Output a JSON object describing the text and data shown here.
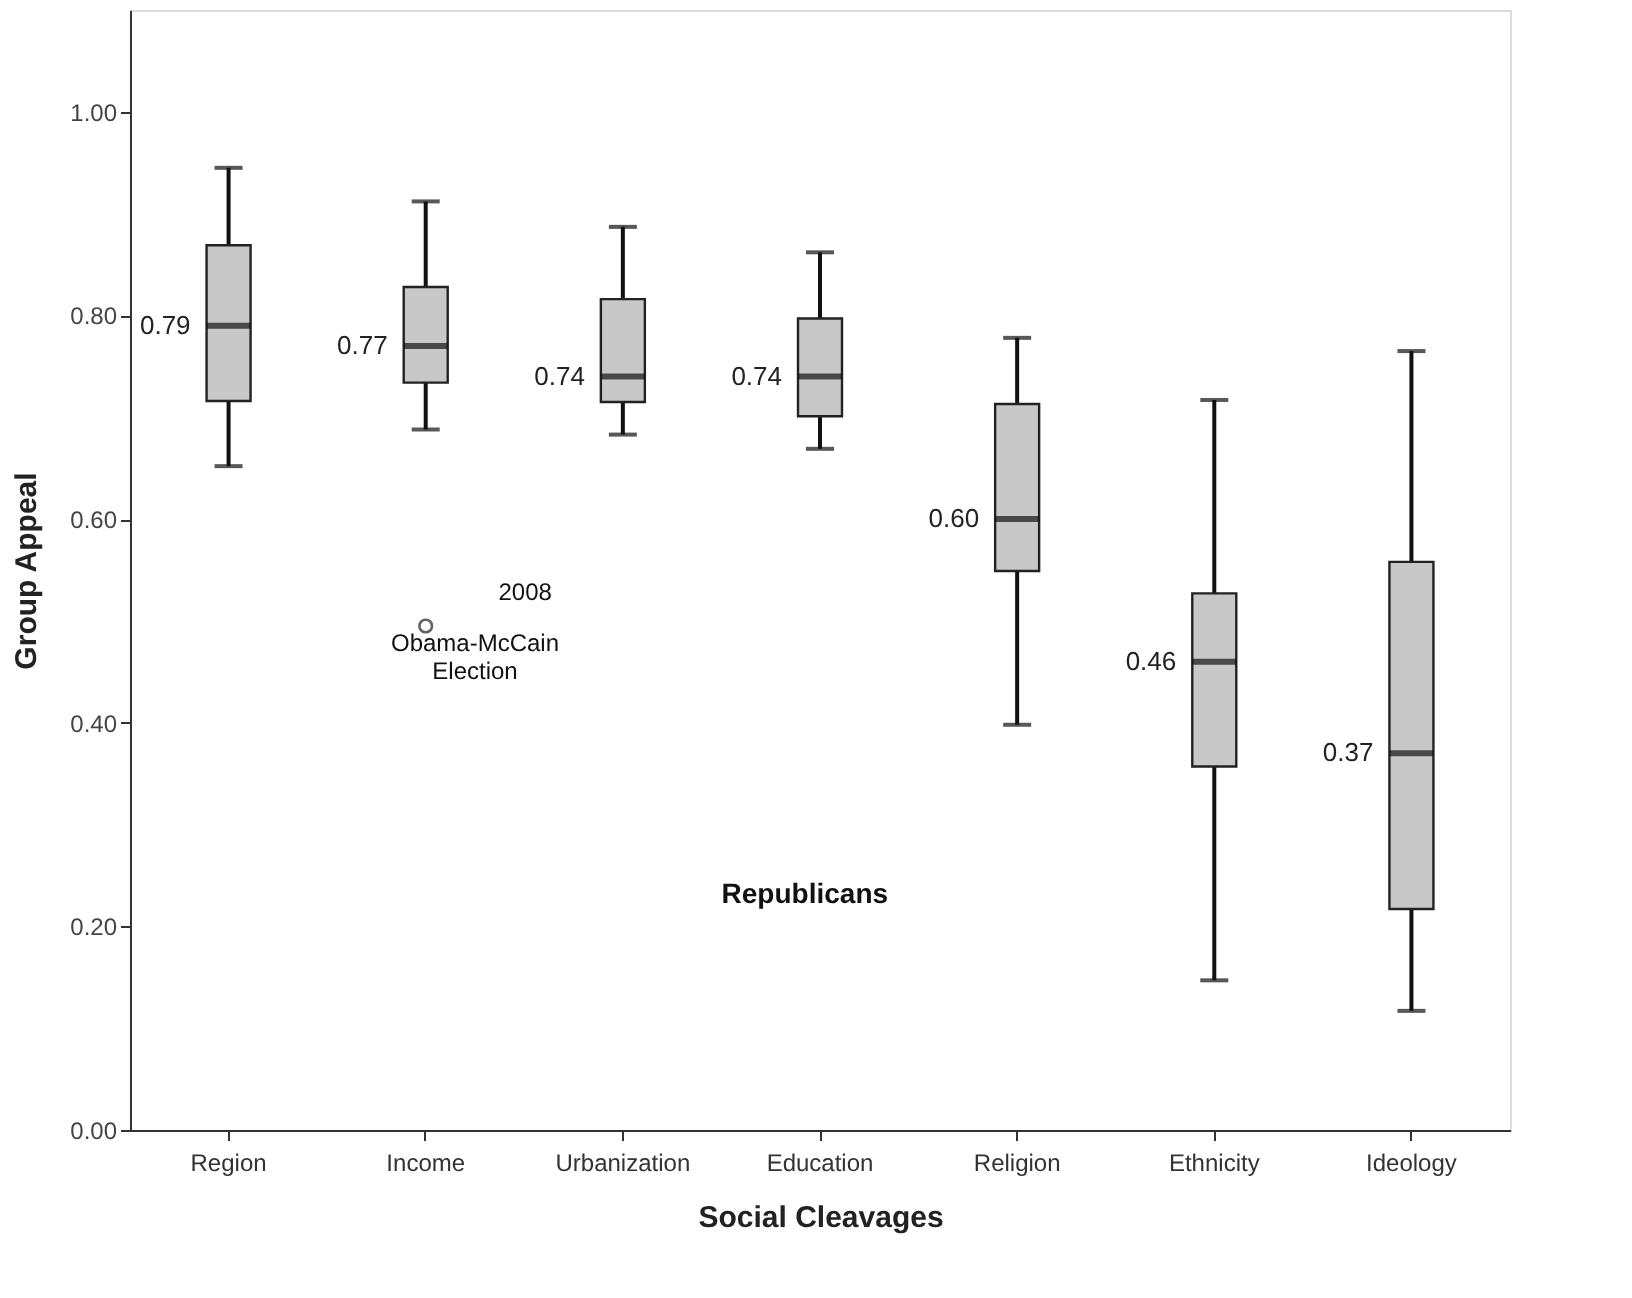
{
  "chart_data": {
    "type": "box",
    "xlabel": "Social Cleavages",
    "ylabel": "Group Appeal",
    "categories": [
      "Region",
      "Income",
      "Urbanization",
      "Education",
      "Religion",
      "Ethnicity",
      "Ideology"
    ],
    "boxes": [
      {
        "low": 0.652,
        "q1": 0.716,
        "median": 0.79,
        "q3": 0.869,
        "high": 0.945
      },
      {
        "low": 0.688,
        "q1": 0.734,
        "median": 0.77,
        "q3": 0.828,
        "high": 0.912,
        "outliers": [
          0.495
        ]
      },
      {
        "low": 0.683,
        "q1": 0.715,
        "median": 0.74,
        "q3": 0.816,
        "high": 0.887
      },
      {
        "low": 0.669,
        "q1": 0.701,
        "median": 0.74,
        "q3": 0.797,
        "high": 0.862
      },
      {
        "low": 0.398,
        "q1": 0.549,
        "median": 0.6,
        "q3": 0.713,
        "high": 0.778
      },
      {
        "low": 0.147,
        "q1": 0.357,
        "median": 0.46,
        "q3": 0.527,
        "high": 0.717
      },
      {
        "low": 0.117,
        "q1": 0.217,
        "median": 0.37,
        "q3": 0.558,
        "high": 0.765
      }
    ],
    "value_labels": [
      "0.79",
      "0.77",
      "0.74",
      "0.74",
      "0.60",
      "0.46",
      "0.37"
    ],
    "color": "#c8c8c8",
    "ylim": [
      0,
      1.1
    ],
    "yticks": [
      {
        "value": 0,
        "label": "0.00"
      },
      {
        "value": 0.2,
        "label": "0.20"
      },
      {
        "value": 0.4,
        "label": "0.40"
      },
      {
        "value": 0.6,
        "label": "0.60"
      },
      {
        "value": 0.8,
        "label": "0.80"
      },
      {
        "value": 1,
        "label": "1.00"
      }
    ],
    "annotations": [
      "2008",
      "Obama-McCain Election",
      "Republicans"
    ],
    "grid": false
  }
}
